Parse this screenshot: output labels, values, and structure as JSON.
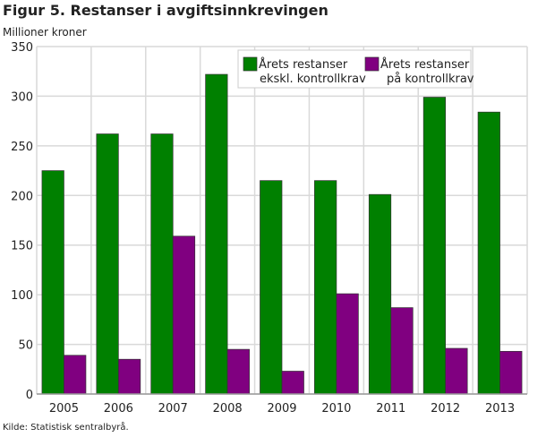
{
  "chart_data": {
    "type": "bar",
    "title": "Figur 5. Restanser i avgiftsinnkrevingen",
    "ylabel": "Millioner kroner",
    "xlabel": "",
    "categories": [
      "2005",
      "2006",
      "2007",
      "2008",
      "2009",
      "2010",
      "2011",
      "2012",
      "2013"
    ],
    "series": [
      {
        "name": "Årets restanser ekskl. kontrollkrav",
        "name_lines": [
          "Årets restanser",
          "ekskl. kontrollkrav"
        ],
        "color": "#008000",
        "values": [
          225,
          262,
          262,
          322,
          215,
          215,
          201,
          299,
          284
        ]
      },
      {
        "name": "Årets restanser på kontrollkrav",
        "name_lines": [
          "Årets restanser",
          "på kontrollkrav"
        ],
        "color": "#800080",
        "values": [
          39,
          35,
          159,
          45,
          23,
          101,
          87,
          46,
          43
        ]
      }
    ],
    "ylim": [
      0,
      350
    ],
    "yticks": [
      0,
      50,
      100,
      150,
      200,
      250,
      300,
      350
    ],
    "grid": true,
    "legend": "top-right"
  },
  "source": "Kilde: Statistisk sentralbyrå."
}
